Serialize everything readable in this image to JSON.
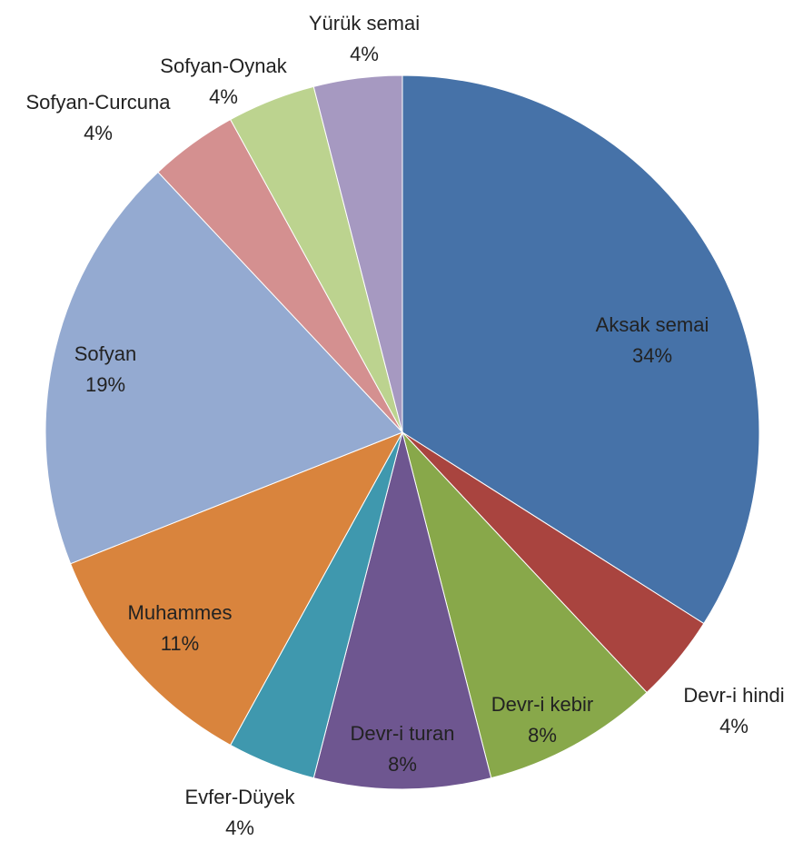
{
  "chart_data": {
    "type": "pie",
    "start_angle_deg": 0,
    "direction": "clockwise",
    "legend": "none",
    "slices": [
      {
        "label": "Aksak semai",
        "value": 34,
        "value_label": "34%",
        "color": "#4672A8"
      },
      {
        "label": "Devr-i hindi",
        "value": 4,
        "value_label": "4%",
        "color": "#A9443F"
      },
      {
        "label": "Devr-i kebir",
        "value": 8,
        "value_label": "8%",
        "color": "#88A84A"
      },
      {
        "label": "Devr-i turan",
        "value": 8,
        "value_label": "8%",
        "color": "#6E5690"
      },
      {
        "label": "Evfer-Düyek",
        "value": 4,
        "value_label": "4%",
        "color": "#3F98AE"
      },
      {
        "label": "Muhammes",
        "value": 11,
        "value_label": "11%",
        "color": "#D9843D"
      },
      {
        "label": "Sofyan",
        "value": 19,
        "value_label": "19%",
        "color": "#94AAD1"
      },
      {
        "label": "Sofyan-Curcuna",
        "value": 4,
        "value_label": "4%",
        "color": "#D49090"
      },
      {
        "label": "Sofyan-Oynak",
        "value": 4,
        "value_label": "4%",
        "color": "#BCD38F"
      },
      {
        "label": "Yürük semai",
        "value": 4,
        "value_label": "4%",
        "color": "#A699C1"
      }
    ]
  }
}
